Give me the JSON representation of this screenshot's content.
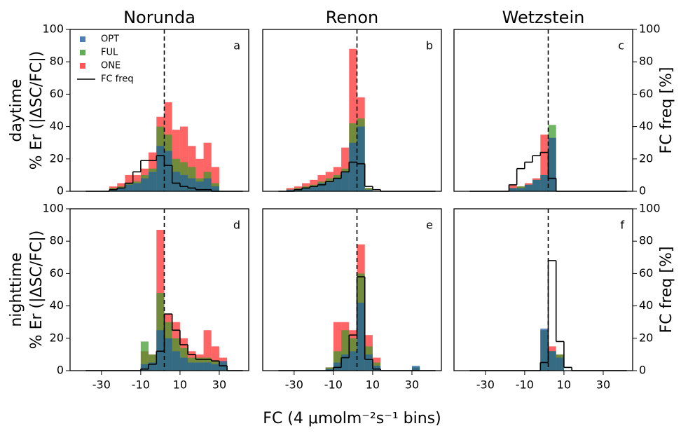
{
  "chart_data": [
    {
      "type": "histogram",
      "title": "Norunda",
      "panel_label": "a",
      "ylabel": [
        "daytime",
        "% Er (|ΔSC/FC|)"
      ],
      "legend": "upper left",
      "bins": [
        -38,
        -34,
        -30,
        -26,
        -22,
        -18,
        -14,
        -10,
        -6,
        -2,
        2,
        6,
        10,
        14,
        18,
        22,
        26,
        30,
        34,
        38,
        42
      ],
      "series": [
        {
          "name": "OPT",
          "color": "#1f5fa0",
          "values": [
            0,
            0,
            0,
            1,
            2,
            4,
            5,
            8,
            12,
            28,
            25,
            12,
            10,
            8,
            6,
            8,
            3,
            0,
            0,
            0
          ]
        },
        {
          "name": "FUL",
          "color": "#3a9a2a",
          "values": [
            0,
            0,
            0,
            2,
            3,
            5,
            6,
            10,
            14,
            40,
            35,
            20,
            18,
            15,
            8,
            12,
            5,
            0,
            0,
            0
          ]
        },
        {
          "name": "ONE",
          "color": "#ff2a2a",
          "values": [
            0,
            0,
            0,
            3,
            5,
            10,
            10,
            14,
            24,
            46,
            55,
            38,
            40,
            28,
            20,
            30,
            15,
            0,
            0,
            0
          ]
        },
        {
          "name": "FC freq",
          "color": "#000000",
          "style": "step",
          "axis": "y2",
          "values": [
            0,
            0,
            0,
            1,
            2,
            5,
            12,
            19,
            19,
            22,
            16,
            5,
            3,
            2,
            1,
            1,
            0,
            0,
            0,
            0
          ]
        }
      ],
      "xlim": [
        -46,
        45
      ],
      "ylim": [
        0,
        100
      ],
      "yticks": [
        0,
        20,
        40,
        60,
        80,
        100
      ],
      "y2lim": [
        0,
        100
      ],
      "vline": 2
    },
    {
      "type": "histogram",
      "title": "Renon",
      "panel_label": "b",
      "bins": [
        -38,
        -34,
        -30,
        -26,
        -22,
        -18,
        -14,
        -10,
        -6,
        -2,
        2,
        6,
        10,
        14,
        18,
        22,
        26,
        30,
        34,
        38,
        42
      ],
      "series": [
        {
          "color": "#1f5fa0",
          "values": [
            0,
            1,
            1,
            2,
            3,
            5,
            6,
            8,
            12,
            30,
            40,
            1,
            0,
            0,
            0,
            0,
            0,
            0,
            0,
            0
          ]
        },
        {
          "color": "#3a9a2a",
          "values": [
            0,
            1,
            2,
            3,
            4,
            6,
            8,
            10,
            14,
            42,
            45,
            2,
            0,
            0,
            0,
            0,
            0,
            0,
            0,
            0
          ]
        },
        {
          "color": "#ff2a2a",
          "values": [
            0,
            2,
            3,
            5,
            7,
            10,
            12,
            15,
            27,
            88,
            58,
            2,
            0,
            0,
            0,
            0,
            0,
            0,
            0,
            0
          ]
        },
        {
          "color": "#000000",
          "style": "step",
          "axis": "y2",
          "values": [
            0,
            0,
            1,
            2,
            3,
            4,
            6,
            8,
            12,
            18,
            17,
            3,
            1,
            0,
            0,
            0,
            0,
            0,
            0,
            0
          ]
        }
      ],
      "xlim": [
        -46,
        45
      ],
      "ylim": [
        0,
        100
      ],
      "y2lim": [
        0,
        100
      ],
      "vline": 2
    },
    {
      "type": "histogram",
      "title": "Wetzstein",
      "panel_label": "c",
      "y2label": "FC freq [%]",
      "bins": [
        -38,
        -34,
        -30,
        -26,
        -22,
        -18,
        -14,
        -10,
        -6,
        -2,
        2,
        6,
        10,
        14,
        18,
        22,
        26,
        30,
        34,
        38,
        42
      ],
      "series": [
        {
          "color": "#1f5fa0",
          "values": [
            0,
            0,
            0,
            0,
            0,
            2,
            2,
            4,
            7,
            10,
            33,
            0,
            0,
            0,
            0,
            0,
            0,
            0,
            0,
            0
          ]
        },
        {
          "color": "#3a9a2a",
          "values": [
            0,
            0,
            0,
            0,
            0,
            2,
            3,
            4,
            7,
            10,
            41,
            0,
            0,
            0,
            0,
            0,
            0,
            0,
            0,
            0
          ]
        },
        {
          "color": "#ff2a2a",
          "values": [
            0,
            0,
            0,
            0,
            0,
            4,
            3,
            5,
            8,
            35,
            33,
            0,
            0,
            0,
            0,
            0,
            0,
            0,
            0,
            0
          ]
        },
        {
          "color": "#000000",
          "style": "step",
          "axis": "y2",
          "values": [
            0,
            0,
            0,
            0,
            0,
            4,
            14,
            18,
            22,
            24,
            8,
            0,
            0,
            0,
            0,
            0,
            0,
            0,
            0,
            0
          ]
        }
      ],
      "xlim": [
        -46,
        45
      ],
      "ylim": [
        0,
        100
      ],
      "y2lim": [
        0,
        100
      ],
      "y2ticks": [
        0,
        20,
        40,
        60,
        80,
        100
      ],
      "vline": 2
    },
    {
      "type": "histogram",
      "panel_label": "d",
      "ylabel": [
        "nighttime",
        "% Er (|ΔSC/FC|)"
      ],
      "bins": [
        -38,
        -34,
        -30,
        -26,
        -22,
        -18,
        -14,
        -10,
        -6,
        -2,
        2,
        6,
        10,
        14,
        18,
        22,
        26,
        30,
        34,
        38,
        42
      ],
      "series": [
        {
          "color": "#1f5fa0",
          "values": [
            0,
            0,
            0,
            0,
            0,
            0,
            0,
            4,
            5,
            25,
            20,
            12,
            8,
            5,
            5,
            5,
            4,
            6,
            0,
            0
          ]
        },
        {
          "color": "#3a9a2a",
          "values": [
            0,
            0,
            0,
            0,
            0,
            0,
            0,
            18,
            10,
            48,
            30,
            20,
            14,
            8,
            8,
            8,
            6,
            5,
            0,
            0
          ]
        },
        {
          "color": "#ff2a2a",
          "values": [
            0,
            0,
            0,
            0,
            0,
            0,
            0,
            12,
            10,
            87,
            35,
            30,
            20,
            12,
            10,
            25,
            15,
            8,
            0,
            0
          ]
        },
        {
          "color": "#000000",
          "style": "step",
          "axis": "y2",
          "values": [
            0,
            0,
            0,
            0,
            0,
            0,
            0,
            1,
            4,
            12,
            35,
            25,
            16,
            10,
            7,
            7,
            6,
            3,
            0,
            0
          ]
        }
      ],
      "xlim": [
        -46,
        45
      ],
      "xticks": [
        -30,
        -10,
        10,
        30
      ],
      "ylim": [
        0,
        100
      ],
      "yticks": [
        0,
        20,
        40,
        60,
        80,
        100
      ],
      "y2lim": [
        0,
        100
      ],
      "vline": 2
    },
    {
      "type": "histogram",
      "panel_label": "e",
      "xlabel": "FC (4 μmolm⁻²s⁻¹ bins)",
      "bins": [
        -38,
        -34,
        -30,
        -26,
        -22,
        -18,
        -14,
        -10,
        -6,
        -2,
        2,
        6,
        10,
        14,
        18,
        22,
        26,
        30,
        34,
        38,
        42
      ],
      "series": [
        {
          "color": "#1f5fa0",
          "values": [
            0,
            0,
            0,
            0,
            0,
            0,
            1,
            5,
            10,
            12,
            42,
            10,
            3,
            0,
            0,
            0,
            0,
            3,
            0,
            0
          ]
        },
        {
          "color": "#3a9a2a",
          "values": [
            0,
            0,
            0,
            0,
            0,
            0,
            2,
            12,
            25,
            20,
            60,
            15,
            5,
            0,
            0,
            0,
            0,
            2,
            0,
            0
          ]
        },
        {
          "color": "#ff2a2a",
          "values": [
            0,
            0,
            0,
            0,
            0,
            0,
            2,
            30,
            30,
            25,
            78,
            22,
            8,
            0,
            0,
            0,
            0,
            2,
            0,
            0
          ]
        },
        {
          "color": "#000000",
          "style": "step",
          "axis": "y2",
          "values": [
            0,
            0,
            0,
            0,
            0,
            0,
            0,
            2,
            8,
            22,
            58,
            7,
            1,
            0,
            0,
            0,
            0,
            0,
            0,
            0
          ]
        }
      ],
      "xlim": [
        -46,
        45
      ],
      "xticks": [
        -30,
        -10,
        10,
        30
      ],
      "ylim": [
        0,
        100
      ],
      "y2lim": [
        0,
        100
      ],
      "vline": 2
    },
    {
      "type": "histogram",
      "panel_label": "f",
      "y2label": "FC freq [%]",
      "bins": [
        -38,
        -34,
        -30,
        -26,
        -22,
        -18,
        -14,
        -10,
        -6,
        -2,
        2,
        6,
        10,
        14,
        18,
        22,
        26,
        30,
        34,
        38,
        42
      ],
      "series": [
        {
          "color": "#1f5fa0",
          "values": [
            0,
            0,
            0,
            0,
            0,
            0,
            0,
            0,
            0,
            26,
            12,
            8,
            0,
            0,
            0,
            0,
            0,
            0,
            0,
            0
          ]
        },
        {
          "color": "#3a9a2a",
          "values": [
            0,
            0,
            0,
            0,
            0,
            0,
            0,
            0,
            0,
            25,
            12,
            10,
            0,
            0,
            0,
            0,
            0,
            0,
            0,
            0
          ]
        },
        {
          "color": "#ff2a2a",
          "values": [
            0,
            0,
            0,
            0,
            0,
            0,
            0,
            0,
            0,
            25,
            15,
            10,
            0,
            0,
            0,
            0,
            0,
            0,
            0,
            0
          ]
        },
        {
          "color": "#000000",
          "style": "step",
          "axis": "y2",
          "values": [
            0,
            0,
            0,
            0,
            0,
            0,
            0,
            0,
            0,
            5,
            68,
            18,
            2,
            0,
            0,
            0,
            0,
            0,
            0,
            0
          ]
        }
      ],
      "xlim": [
        -46,
        45
      ],
      "xticks": [
        -30,
        -10,
        10,
        30
      ],
      "ylim": [
        0,
        100
      ],
      "y2lim": [
        0,
        100
      ],
      "y2ticks": [
        0,
        20,
        40,
        60,
        80,
        100
      ],
      "vline": 2
    }
  ]
}
